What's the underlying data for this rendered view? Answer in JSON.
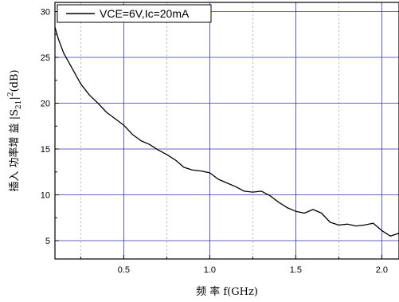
{
  "chart_data": {
    "type": "line",
    "xlabel": "频 率 f(GHz)",
    "ylabel": "插入 功率增 益  |S21|2(dB)",
    "xlim": [
      0.1,
      2.1
    ],
    "ylim": [
      3,
      31
    ],
    "x_ticks": [
      0.5,
      1.0,
      1.5,
      2.0
    ],
    "x_tick_labels": [
      "0.5",
      "1.0",
      "1.5",
      "2.0"
    ],
    "y_ticks": [
      5,
      10,
      15,
      20,
      25,
      30
    ],
    "y_tick_labels": [
      "5",
      "10",
      "15",
      "20",
      "25",
      "30"
    ],
    "grid": true,
    "grid_color": "#3333aa",
    "line_color": "#000000",
    "legend_position": "top-left",
    "series": [
      {
        "name": "VCE=6V,Ic=20mA",
        "x": [
          0.1,
          0.12,
          0.15,
          0.2,
          0.25,
          0.3,
          0.35,
          0.4,
          0.45,
          0.5,
          0.55,
          0.6,
          0.65,
          0.7,
          0.75,
          0.8,
          0.85,
          0.9,
          0.95,
          1.0,
          1.05,
          1.1,
          1.15,
          1.2,
          1.25,
          1.3,
          1.35,
          1.4,
          1.45,
          1.5,
          1.55,
          1.6,
          1.65,
          1.7,
          1.75,
          1.8,
          1.85,
          1.9,
          1.95,
          2.0,
          2.05,
          2.1
        ],
        "y": [
          28.3,
          27.0,
          25.5,
          23.8,
          22.1,
          20.9,
          20.0,
          19.0,
          18.3,
          17.6,
          16.6,
          15.9,
          15.5,
          14.9,
          14.4,
          13.8,
          13.0,
          12.7,
          12.6,
          12.4,
          11.7,
          11.3,
          10.9,
          10.4,
          10.3,
          10.4,
          9.9,
          9.2,
          8.6,
          8.2,
          8.0,
          8.4,
          8.0,
          7.0,
          6.7,
          6.8,
          6.6,
          6.7,
          6.9,
          6.1,
          5.5,
          5.8
        ]
      }
    ]
  }
}
